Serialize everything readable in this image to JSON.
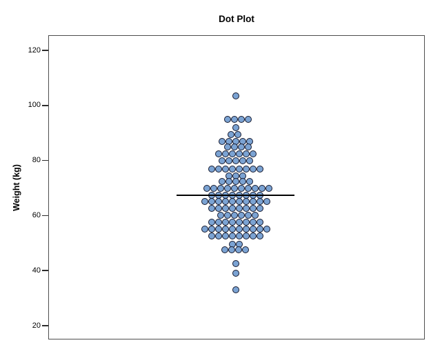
{
  "chart_data": {
    "type": "dotplot",
    "title": "Dot Plot",
    "ylabel": "Weight (kg)",
    "xlabel": "",
    "yticks": [
      120,
      100,
      80,
      60,
      40,
      20
    ],
    "ylim": [
      15,
      126
    ],
    "grid": false,
    "legend": "none",
    "mean_line_value": 67.4,
    "total_points": 121,
    "rows": [
      {
        "value": 103.5,
        "count": 1,
        "shift": 0
      },
      {
        "value": 95,
        "count": 4,
        "shift": 3
      },
      {
        "value": 92,
        "count": 1,
        "shift": 0
      },
      {
        "value": 89.5,
        "count": 2,
        "shift": -2
      },
      {
        "value": 87,
        "count": 5,
        "shift": 0
      },
      {
        "value": 85,
        "count": 4,
        "shift": 3
      },
      {
        "value": 82.5,
        "count": 6,
        "shift": 0
      },
      {
        "value": 80,
        "count": 5,
        "shift": 0
      },
      {
        "value": 77,
        "count": 8,
        "shift": 0
      },
      {
        "value": 74.5,
        "count": 3,
        "shift": 0
      },
      {
        "value": 72.5,
        "count": 5,
        "shift": 0
      },
      {
        "value": 70,
        "count": 10,
        "shift": 3
      },
      {
        "value": 67.4,
        "count": 8,
        "shift": 0
      },
      {
        "value": 65,
        "count": 10,
        "shift": 0
      },
      {
        "value": 62.5,
        "count": 8,
        "shift": 0
      },
      {
        "value": 60,
        "count": 6,
        "shift": 3
      },
      {
        "value": 57.5,
        "count": 8,
        "shift": 0
      },
      {
        "value": 55,
        "count": 10,
        "shift": 0
      },
      {
        "value": 52.5,
        "count": 8,
        "shift": 0
      },
      {
        "value": 49.5,
        "count": 2,
        "shift": 0
      },
      {
        "value": 47.5,
        "count": 4,
        "shift": -1
      },
      {
        "value": 42.5,
        "count": 1,
        "shift": 0
      },
      {
        "value": 39,
        "count": 1,
        "shift": 0
      },
      {
        "value": 33,
        "count": 1,
        "shift": 0
      }
    ],
    "colors": {
      "dot_fill": "#7BA3D3",
      "dot_border": "#15192E",
      "mean_line": "#000000",
      "frame_border": "#4d4d4d",
      "background": "#ffffff",
      "text": "#000000"
    }
  }
}
